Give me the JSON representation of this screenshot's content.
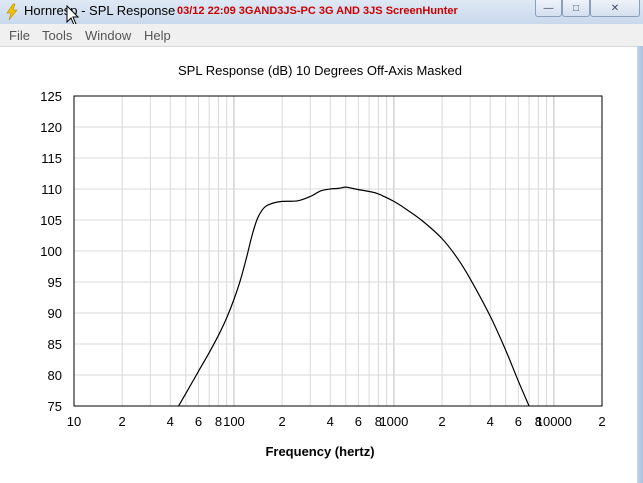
{
  "window": {
    "title": "Hornresp - SPL Response",
    "overlay_text": "03/12  22:09  3GAND3JS-PC  3G AND 3JS  ScreenHunter",
    "controls": {
      "minimize": "—",
      "maximize": "□",
      "close": "✕"
    }
  },
  "menu": {
    "items": [
      {
        "label": "File"
      },
      {
        "label": "Tools"
      },
      {
        "label": "Window"
      },
      {
        "label": "Help"
      }
    ]
  },
  "chart_data": {
    "type": "line",
    "title": "SPL Response (dB)   10 Degrees Off-Axis   Masked",
    "xlabel": "Frequency (hertz)",
    "ylabel": "",
    "x_scale": "log",
    "xlim": [
      10,
      20000
    ],
    "ylim": [
      75,
      125
    ],
    "grid": true,
    "y_ticks": [
      125,
      120,
      115,
      110,
      105,
      100,
      95,
      90,
      85,
      80,
      75
    ],
    "x_tick_labels": [
      {
        "value": 10,
        "label": "10"
      },
      {
        "value": 20,
        "label": "2"
      },
      {
        "value": 40,
        "label": "4"
      },
      {
        "value": 60,
        "label": "6"
      },
      {
        "value": 80,
        "label": "8"
      },
      {
        "value": 100,
        "label": "100"
      },
      {
        "value": 200,
        "label": "2"
      },
      {
        "value": 400,
        "label": "4"
      },
      {
        "value": 600,
        "label": "6"
      },
      {
        "value": 800,
        "label": "8"
      },
      {
        "value": 1000,
        "label": "1000"
      },
      {
        "value": 2000,
        "label": "2"
      },
      {
        "value": 4000,
        "label": "4"
      },
      {
        "value": 6000,
        "label": "6"
      },
      {
        "value": 8000,
        "label": "8"
      },
      {
        "value": 10000,
        "label": "10000"
      },
      {
        "value": 20000,
        "label": "2"
      }
    ],
    "series": [
      {
        "color": "#000000",
        "x": [
          45,
          50,
          60,
          70,
          80,
          90,
          100,
          110,
          120,
          130,
          140,
          150,
          160,
          180,
          200,
          250,
          300,
          350,
          400,
          450,
          500,
          550,
          600,
          700,
          800,
          1000,
          1200,
          1500,
          2000,
          2500,
          3000,
          4000,
          5000,
          6000,
          7000
        ],
        "y": [
          75,
          77,
          80.6,
          83.6,
          86.4,
          89.2,
          92.2,
          95.4,
          99,
          102.6,
          105.2,
          106.6,
          107.3,
          107.8,
          108,
          108.1,
          108.8,
          109.7,
          110,
          110.1,
          110.3,
          110.1,
          109.9,
          109.6,
          109.2,
          108,
          106.7,
          104.9,
          102,
          98.8,
          95.5,
          89.5,
          84,
          79,
          75
        ]
      }
    ]
  }
}
